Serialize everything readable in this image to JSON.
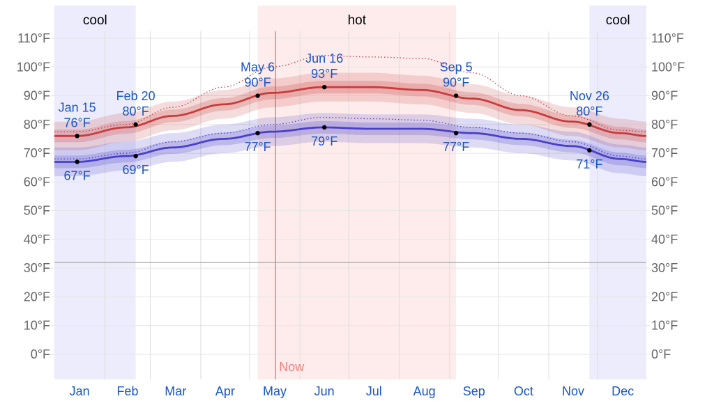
{
  "chart_data": {
    "type": "line",
    "x_unit": "day of year",
    "ylim": [
      0,
      110
    ],
    "y_ticks": [
      "0°F",
      "10°F",
      "20°F",
      "30°F",
      "40°F",
      "50°F",
      "60°F",
      "70°F",
      "80°F",
      "90°F",
      "100°F",
      "110°F"
    ],
    "months": [
      "Jan",
      "Feb",
      "Mar",
      "Apr",
      "May",
      "Jun",
      "Jul",
      "Aug",
      "Sep",
      "Oct",
      "Nov",
      "Dec"
    ],
    "x": [
      1,
      15,
      45,
      74,
      105,
      135,
      166,
      196,
      227,
      258,
      288,
      319,
      349,
      365
    ],
    "series": [
      {
        "key": "high",
        "color": "#c83c3c",
        "values": [
          76,
          76,
          79,
          83,
          87,
          91,
          93,
          93,
          92,
          89,
          85,
          81,
          77,
          76
        ]
      },
      {
        "key": "low",
        "color": "#4a3fc8",
        "values": [
          67,
          67,
          69,
          72,
          75,
          77.5,
          79,
          78.5,
          78.5,
          77,
          75,
          72.5,
          68,
          67
        ]
      },
      {
        "key": "high-dotted",
        "color": "#c83c3c",
        "values": [
          77.5,
          77.5,
          80,
          86,
          93,
          100,
          104,
          103.5,
          103,
          98,
          90,
          83,
          78,
          77.5
        ]
      },
      {
        "key": "low-dotted",
        "color": "#4a3fc8",
        "values": [
          68,
          68,
          70,
          74,
          77,
          80,
          82.5,
          82,
          81.5,
          79,
          77,
          74,
          69,
          68
        ]
      }
    ],
    "freezing_line": 32,
    "seasons": [
      {
        "label": "cool",
        "start": 1,
        "end": 51,
        "color": "#ececfc"
      },
      {
        "label": "hot",
        "start": 126,
        "end": 248,
        "color": "#fdeceb"
      },
      {
        "label": "cool",
        "start": 330,
        "end": 365,
        "color": "#ececfc"
      }
    ],
    "now": {
      "label": "Now",
      "day": 137,
      "color": "#f0827a"
    },
    "annotations": [
      {
        "day": 15,
        "value": 76,
        "date": "Jan 15",
        "text": "76°F",
        "pos": "above"
      },
      {
        "day": 51,
        "value": 80,
        "date": "Feb 20",
        "text": "80°F",
        "pos": "above"
      },
      {
        "day": 126,
        "value": 90,
        "date": "May 6",
        "text": "90°F",
        "pos": "above"
      },
      {
        "day": 167,
        "value": 93,
        "date": "Jun 16",
        "text": "93°F",
        "pos": "above"
      },
      {
        "day": 248,
        "value": 90,
        "date": "Sep 5",
        "text": "90°F",
        "pos": "above"
      },
      {
        "day": 330,
        "value": 80,
        "date": "Nov 26",
        "text": "80°F",
        "pos": "above"
      },
      {
        "day": 15,
        "value": 67,
        "date": "",
        "text": "67°F",
        "pos": "below"
      },
      {
        "day": 51,
        "value": 69,
        "date": "",
        "text": "69°F",
        "pos": "below"
      },
      {
        "day": 126,
        "value": 77,
        "date": "",
        "text": "77°F",
        "pos": "below"
      },
      {
        "day": 167,
        "value": 79,
        "date": "",
        "text": "79°F",
        "pos": "below"
      },
      {
        "day": 248,
        "value": 77,
        "date": "",
        "text": "77°F",
        "pos": "below"
      },
      {
        "day": 330,
        "value": 71,
        "date": "",
        "text": "71°F",
        "pos": "below"
      }
    ]
  }
}
